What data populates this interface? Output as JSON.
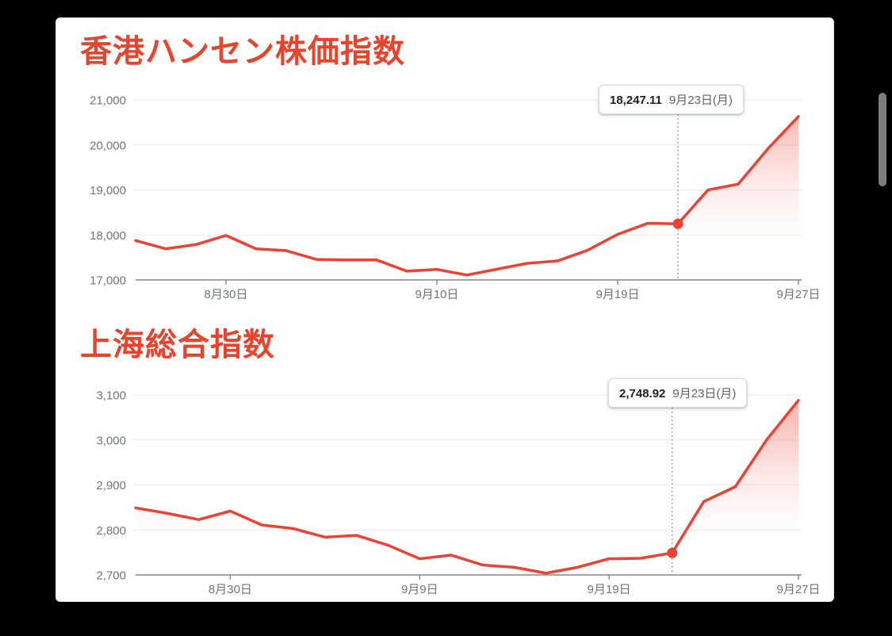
{
  "colors": {
    "line_red": "#ea4335",
    "title_red": "#e8432c",
    "axis_label": "#70757a",
    "axis_line": "#80868b",
    "gridline": "#ececec",
    "tooltip_value": "#202124",
    "tooltip_date": "#5f6368",
    "dotted_line": "#9aa0a6",
    "card_bg": "#ffffff",
    "frame_bg": "#000000",
    "scrollbar_thumb": "#7e7e7e"
  },
  "scrollbar": {
    "present": true
  },
  "chart_data": [
    {
      "type": "line",
      "title": "香港ハンセン株価指数",
      "tooltip": {
        "value": "18,247.11",
        "date": "9月23日(月)"
      },
      "ylim": [
        17000,
        21000
      ],
      "y_tick_labels": [
        "21,000",
        "20,000",
        "19,000",
        "18,000",
        "17,000"
      ],
      "x_tick_labels": [
        {
          "label": "8月30日",
          "index": 3
        },
        {
          "label": "9月10日",
          "index": 10
        },
        {
          "label": "9月19日",
          "index": 16
        },
        {
          "label": "9月27日",
          "index": 22
        }
      ],
      "values": [
        17875,
        17692,
        17786,
        17989,
        17692,
        17651,
        17457,
        17444,
        17444,
        17197,
        17234,
        17109,
        17240,
        17369,
        17422,
        17660,
        18013,
        18259,
        18247.11,
        19001,
        19129,
        19925,
        20632
      ],
      "marker_index": 18,
      "marker_value": 18247.11,
      "fill_start_index": 18,
      "grid": true,
      "legend": "none"
    },
    {
      "type": "line",
      "title": "上海総合指数",
      "tooltip": {
        "value": "2,748.92",
        "date": "9月23日(月)"
      },
      "ylim": [
        2700,
        3100
      ],
      "y_tick_labels": [
        "3,100",
        "3,000",
        "2,900",
        "2,800",
        "2,700"
      ],
      "x_tick_labels": [
        {
          "label": "8月30日",
          "index": 3
        },
        {
          "label": "9月9日",
          "index": 9
        },
        {
          "label": "9月19日",
          "index": 15
        },
        {
          "label": "9月27日",
          "index": 21
        }
      ],
      "values": [
        2849,
        2837,
        2823,
        2842,
        2811,
        2803,
        2784,
        2788,
        2766,
        2736,
        2744,
        2722,
        2717,
        2704,
        2717,
        2736,
        2737,
        2748.92,
        2863,
        2896,
        3001,
        3088
      ],
      "marker_index": 17,
      "marker_value": 2748.92,
      "fill_start_index": 0,
      "grid": true,
      "legend": "none"
    }
  ]
}
